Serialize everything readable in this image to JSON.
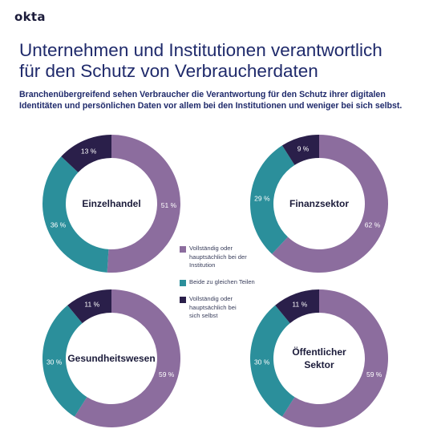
{
  "logo": "okta",
  "title_line1": "Unternehmen und Institutionen verantwortlich",
  "title_line2": "für den Schutz von Verbraucherdaten",
  "subtitle_line1": "Branchenübergreifend sehen Verbraucher die Verantwortung für den Schutz ihrer digitalen",
  "subtitle_line2": "Identitäten und persönlichen Daten vor allem bei den Institutionen und weniger bei sich selbst.",
  "colors": {
    "institution": "#8c6d9e",
    "shared": "#2b8f9b",
    "self": "#2a1f4a"
  },
  "legend": [
    {
      "key": "institution",
      "lines": [
        "Vollständig oder",
        "hauptsächlich bei der",
        "Institution"
      ]
    },
    {
      "key": "shared",
      "lines": [
        "Beide zu gleichen Teilen"
      ]
    },
    {
      "key": "self",
      "lines": [
        "Vollständig oder",
        "hauptsächlich bei",
        "sich selbst"
      ]
    }
  ],
  "chart_data": [
    {
      "type": "pie",
      "title_lines": [
        "Einzelhandel"
      ],
      "categories": [
        "institution",
        "shared",
        "self"
      ],
      "values": [
        51,
        36,
        13
      ],
      "labels": [
        "51 %",
        "36 %",
        "13 %"
      ]
    },
    {
      "type": "pie",
      "title_lines": [
        "Finanzsektor"
      ],
      "categories": [
        "institution",
        "shared",
        "self"
      ],
      "values": [
        62,
        29,
        9
      ],
      "labels": [
        "62 %",
        "29 %",
        "9 %"
      ]
    },
    {
      "type": "pie",
      "title_lines": [
        "Gesundheitswesen"
      ],
      "categories": [
        "institution",
        "shared",
        "self"
      ],
      "values": [
        59,
        30,
        11
      ],
      "labels": [
        "59 %",
        "30 %",
        "11 %"
      ]
    },
    {
      "type": "pie",
      "title_lines": [
        "Öffentlicher",
        "Sektor"
      ],
      "categories": [
        "institution",
        "shared",
        "self"
      ],
      "values": [
        59,
        30,
        11
      ],
      "labels": [
        "59 %",
        "30 %",
        "11 %"
      ]
    }
  ]
}
